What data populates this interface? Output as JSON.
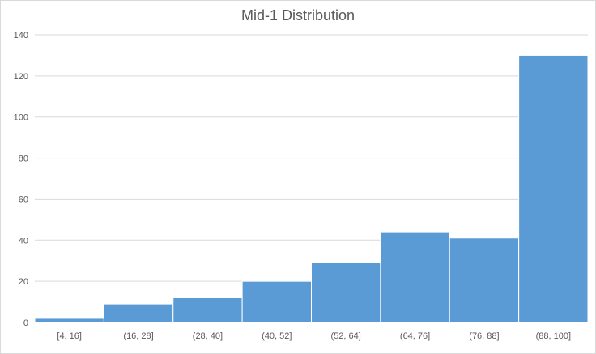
{
  "chart_data": {
    "type": "bar",
    "title": "Mid-1 Distribution",
    "xlabel": "",
    "ylabel": "",
    "categories": [
      "[4, 16]",
      "(16, 28]",
      "(28, 40]",
      "(40, 52]",
      "(52, 64]",
      "(64, 76]",
      "(76, 88]",
      "(88, 100]"
    ],
    "values": [
      2,
      9,
      12,
      20,
      29,
      44,
      41,
      130
    ],
    "ylim": [
      0,
      140
    ],
    "yticks": [
      0,
      20,
      40,
      60,
      80,
      100,
      120,
      140
    ],
    "grid": true,
    "legend": "none",
    "bar_color": "#5b9bd5",
    "gridline_color": "#d9d9d9",
    "axis_text_color": "#595959"
  }
}
